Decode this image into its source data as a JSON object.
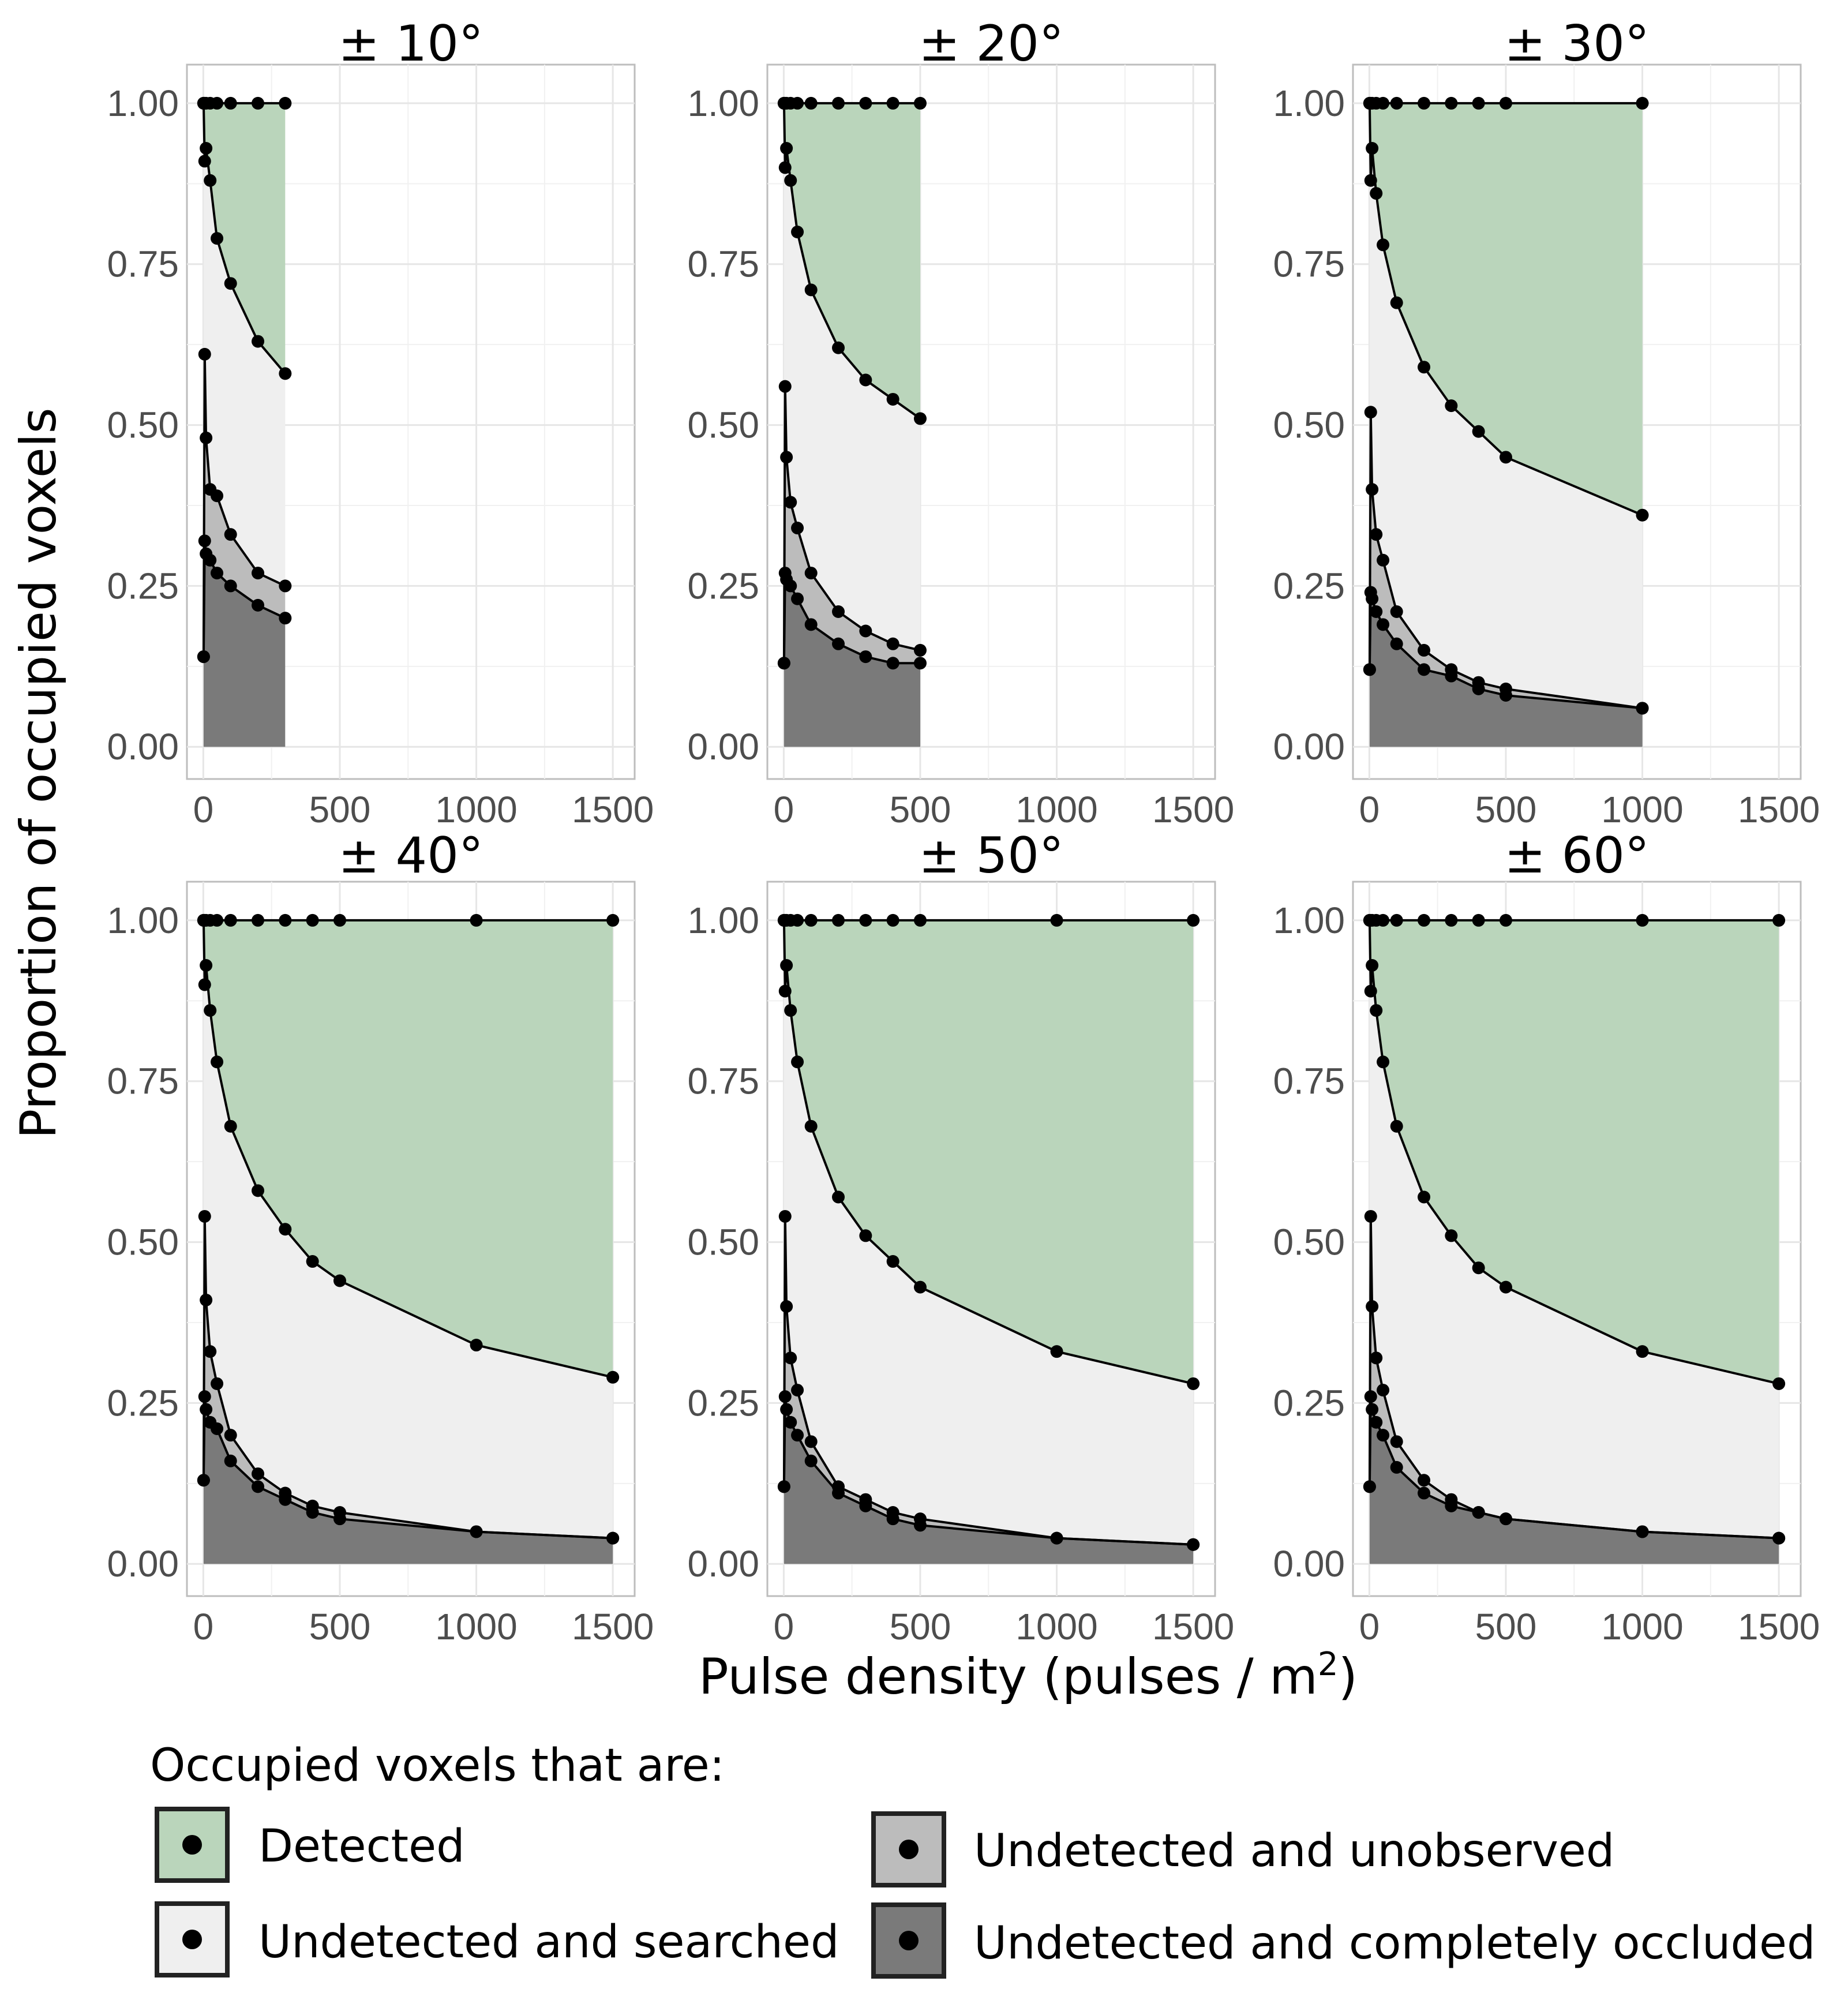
{
  "chart_data": {
    "type": "area",
    "ylabel": "Proportion of occupied voxels",
    "xlabel": "Pulse density (pulses / m",
    "xlabel_sup": "2",
    "xlabel_end": ")",
    "xlim": [
      -60,
      1580
    ],
    "ylim": [
      -0.05,
      1.06
    ],
    "xticks": [
      0,
      500,
      1000,
      1500
    ],
    "xtick_labels": [
      "0",
      "500",
      "1000",
      "1500"
    ],
    "yticks": [
      0,
      0.25,
      0.5,
      0.75,
      1.0
    ],
    "ytick_labels": [
      "0.00",
      "0.25",
      "0.50",
      "0.75",
      "1.00"
    ],
    "colors": {
      "detected": "#bad5bb",
      "searched": "#efefef",
      "unobserved": "#bcbcbc",
      "occluded": "#7a7a7a"
    },
    "legend": {
      "title": "Occupied voxels that are:",
      "position": "bottom",
      "entries": [
        {
          "key": "detected",
          "label": "Detected"
        },
        {
          "key": "searched",
          "label": "Undetected and searched"
        },
        {
          "key": "unobserved",
          "label": "Undetected and unobserved"
        },
        {
          "key": "occluded",
          "label": "Undetected and completely occluded"
        }
      ]
    },
    "panels": [
      {
        "title": "± 10°",
        "x": [
          1,
          5,
          10,
          25,
          50,
          100,
          200,
          300
        ],
        "series": {
          "top": [
            1.0,
            1.0,
            1.0,
            1.0,
            1.0,
            1.0,
            1.0,
            1.0
          ],
          "detected_lower": [
            1.0,
            0.91,
            0.93,
            0.88,
            0.79,
            0.72,
            0.63,
            0.58
          ],
          "searched_lower": [
            0.14,
            0.61,
            0.48,
            0.4,
            0.39,
            0.33,
            0.27,
            0.25
          ],
          "unobserved_lower": [
            0.14,
            0.32,
            0.3,
            0.29,
            0.27,
            0.25,
            0.22,
            0.2
          ]
        }
      },
      {
        "title": "± 20°",
        "x": [
          1,
          5,
          10,
          25,
          50,
          100,
          200,
          300,
          400,
          500
        ],
        "series": {
          "top": [
            1.0,
            1.0,
            1.0,
            1.0,
            1.0,
            1.0,
            1.0,
            1.0,
            1.0,
            1.0
          ],
          "detected_lower": [
            1.0,
            0.9,
            0.93,
            0.88,
            0.8,
            0.71,
            0.62,
            0.57,
            0.54,
            0.51
          ],
          "searched_lower": [
            0.13,
            0.56,
            0.45,
            0.38,
            0.34,
            0.27,
            0.21,
            0.18,
            0.16,
            0.15
          ],
          "unobserved_lower": [
            0.13,
            0.27,
            0.26,
            0.25,
            0.23,
            0.19,
            0.16,
            0.14,
            0.13,
            0.13
          ]
        }
      },
      {
        "title": "± 30°",
        "x": [
          1,
          5,
          10,
          25,
          50,
          100,
          200,
          300,
          400,
          500,
          1000
        ],
        "series": {
          "top": [
            1.0,
            1.0,
            1.0,
            1.0,
            1.0,
            1.0,
            1.0,
            1.0,
            1.0,
            1.0,
            1.0
          ],
          "detected_lower": [
            1.0,
            0.88,
            0.93,
            0.86,
            0.78,
            0.69,
            0.59,
            0.53,
            0.49,
            0.45,
            0.36
          ],
          "searched_lower": [
            0.12,
            0.52,
            0.4,
            0.33,
            0.29,
            0.21,
            0.15,
            0.12,
            0.1,
            0.09,
            0.06
          ],
          "unobserved_lower": [
            0.12,
            0.24,
            0.23,
            0.21,
            0.19,
            0.16,
            0.12,
            0.11,
            0.09,
            0.08,
            0.06
          ]
        }
      },
      {
        "title": "± 40°",
        "x": [
          1,
          5,
          10,
          25,
          50,
          100,
          200,
          300,
          400,
          500,
          1000,
          1500
        ],
        "series": {
          "top": [
            1.0,
            1.0,
            1.0,
            1.0,
            1.0,
            1.0,
            1.0,
            1.0,
            1.0,
            1.0,
            1.0,
            1.0
          ],
          "detected_lower": [
            1.0,
            0.9,
            0.93,
            0.86,
            0.78,
            0.68,
            0.58,
            0.52,
            0.47,
            0.44,
            0.34,
            0.29
          ],
          "searched_lower": [
            0.13,
            0.54,
            0.41,
            0.33,
            0.28,
            0.2,
            0.14,
            0.11,
            0.09,
            0.08,
            0.05,
            0.04
          ],
          "unobserved_lower": [
            0.13,
            0.26,
            0.24,
            0.22,
            0.21,
            0.16,
            0.12,
            0.1,
            0.08,
            0.07,
            0.05,
            0.04
          ]
        }
      },
      {
        "title": "± 50°",
        "x": [
          1,
          5,
          10,
          25,
          50,
          100,
          200,
          300,
          400,
          500,
          1000,
          1500
        ],
        "series": {
          "top": [
            1.0,
            1.0,
            1.0,
            1.0,
            1.0,
            1.0,
            1.0,
            1.0,
            1.0,
            1.0,
            1.0,
            1.0
          ],
          "detected_lower": [
            1.0,
            0.89,
            0.93,
            0.86,
            0.78,
            0.68,
            0.57,
            0.51,
            0.47,
            0.43,
            0.33,
            0.28
          ],
          "searched_lower": [
            0.12,
            0.54,
            0.4,
            0.32,
            0.27,
            0.19,
            0.12,
            0.1,
            0.08,
            0.07,
            0.04,
            0.03
          ],
          "unobserved_lower": [
            0.12,
            0.26,
            0.24,
            0.22,
            0.2,
            0.16,
            0.11,
            0.09,
            0.07,
            0.06,
            0.04,
            0.03
          ]
        }
      },
      {
        "title": "± 60°",
        "x": [
          1,
          5,
          10,
          25,
          50,
          100,
          200,
          300,
          400,
          500,
          1000,
          1500
        ],
        "series": {
          "top": [
            1.0,
            1.0,
            1.0,
            1.0,
            1.0,
            1.0,
            1.0,
            1.0,
            1.0,
            1.0,
            1.0,
            1.0
          ],
          "detected_lower": [
            1.0,
            0.89,
            0.93,
            0.86,
            0.78,
            0.68,
            0.57,
            0.51,
            0.46,
            0.43,
            0.33,
            0.28
          ],
          "searched_lower": [
            0.12,
            0.54,
            0.4,
            0.32,
            0.27,
            0.19,
            0.13,
            0.1,
            0.08,
            0.07,
            0.05,
            0.04
          ],
          "unobserved_lower": [
            0.12,
            0.26,
            0.24,
            0.22,
            0.2,
            0.15,
            0.11,
            0.09,
            0.08,
            0.07,
            0.05,
            0.04
          ]
        }
      }
    ]
  }
}
